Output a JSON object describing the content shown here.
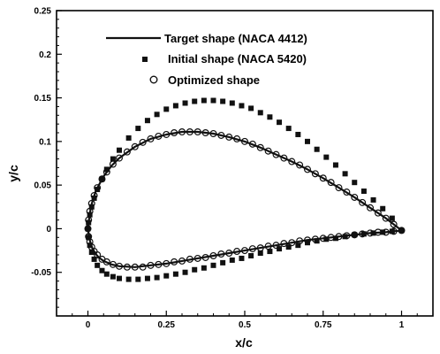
{
  "chart_data": {
    "type": "line",
    "xlabel": "x/c",
    "ylabel": "y/c",
    "xlim": [
      -0.1,
      1.1
    ],
    "ylim": [
      -0.1,
      0.25
    ],
    "x_ticks": [
      0,
      0.25,
      0.5,
      0.75,
      1
    ],
    "x_tick_labels": [
      "0",
      "0.25",
      "0.5",
      "0.75",
      "1"
    ],
    "y_ticks": [
      -0.05,
      0,
      0.05,
      0.1,
      0.15,
      0.2,
      0.25
    ],
    "y_tick_labels": [
      "-0.05",
      "0",
      "0.05",
      "0.1",
      "0.15",
      "0.2",
      "0.25"
    ],
    "grid": false,
    "legend_position": "top-center",
    "series": [
      {
        "name": "Target shape (NACA 4412)",
        "style": "line",
        "x": [
          1.0,
          0.95,
          0.9,
          0.85,
          0.8,
          0.75,
          0.7,
          0.65,
          0.6,
          0.55,
          0.5,
          0.45,
          0.4,
          0.35,
          0.3,
          0.25,
          0.2,
          0.15,
          0.1,
          0.075,
          0.05,
          0.035,
          0.025,
          0.015,
          0.01,
          0.005,
          0.0,
          0.005,
          0.01,
          0.015,
          0.025,
          0.035,
          0.05,
          0.075,
          0.1,
          0.15,
          0.2,
          0.25,
          0.3,
          0.35,
          0.4,
          0.45,
          0.5,
          0.55,
          0.6,
          0.65,
          0.7,
          0.75,
          0.8,
          0.85,
          0.9,
          0.95,
          1.0
        ],
        "y": [
          -0.002,
          0.012,
          0.024,
          0.036,
          0.047,
          0.058,
          0.068,
          0.077,
          0.085,
          0.093,
          0.1,
          0.105,
          0.109,
          0.111,
          0.111,
          0.108,
          0.103,
          0.094,
          0.081,
          0.072,
          0.06,
          0.05,
          0.043,
          0.032,
          0.025,
          0.015,
          0.0,
          -0.012,
          -0.018,
          -0.023,
          -0.029,
          -0.033,
          -0.037,
          -0.041,
          -0.043,
          -0.044,
          -0.042,
          -0.04,
          -0.037,
          -0.034,
          -0.031,
          -0.028,
          -0.025,
          -0.022,
          -0.019,
          -0.016,
          -0.013,
          -0.011,
          -0.009,
          -0.007,
          -0.005,
          -0.004,
          -0.002
        ]
      },
      {
        "name": "Initial shape (NACA 5420)",
        "style": "square-markers",
        "x": [
          1.0,
          0.97,
          0.94,
          0.91,
          0.88,
          0.85,
          0.82,
          0.79,
          0.76,
          0.73,
          0.7,
          0.67,
          0.64,
          0.61,
          0.58,
          0.55,
          0.52,
          0.49,
          0.46,
          0.43,
          0.4,
          0.37,
          0.34,
          0.31,
          0.28,
          0.25,
          0.22,
          0.19,
          0.16,
          0.13,
          0.1,
          0.08,
          0.06,
          0.045,
          0.03,
          0.02,
          0.012,
          0.006,
          0.002,
          0.0,
          0.002,
          0.006,
          0.012,
          0.02,
          0.03,
          0.045,
          0.06,
          0.08,
          0.1,
          0.13,
          0.16,
          0.19,
          0.22,
          0.25,
          0.28,
          0.31,
          0.34,
          0.37,
          0.4,
          0.43,
          0.46,
          0.49,
          0.52,
          0.55,
          0.58,
          0.61,
          0.64,
          0.67,
          0.7,
          0.73,
          0.76,
          0.79,
          0.82,
          0.85,
          0.88,
          0.91,
          0.94,
          0.97
        ],
        "y": [
          -0.002,
          0.012,
          0.023,
          0.033,
          0.043,
          0.053,
          0.063,
          0.073,
          0.082,
          0.091,
          0.1,
          0.108,
          0.115,
          0.122,
          0.128,
          0.133,
          0.138,
          0.141,
          0.144,
          0.146,
          0.147,
          0.147,
          0.146,
          0.144,
          0.141,
          0.137,
          0.131,
          0.124,
          0.115,
          0.104,
          0.09,
          0.08,
          0.068,
          0.057,
          0.045,
          0.035,
          0.025,
          0.016,
          0.007,
          0.0,
          -0.01,
          -0.019,
          -0.027,
          -0.035,
          -0.042,
          -0.048,
          -0.052,
          -0.055,
          -0.057,
          -0.058,
          -0.058,
          -0.057,
          -0.056,
          -0.054,
          -0.052,
          -0.05,
          -0.047,
          -0.045,
          -0.042,
          -0.039,
          -0.036,
          -0.034,
          -0.031,
          -0.028,
          -0.026,
          -0.023,
          -0.021,
          -0.019,
          -0.016,
          -0.014,
          -0.012,
          -0.011,
          -0.009,
          -0.007,
          -0.006,
          -0.005,
          -0.004,
          -0.003
        ]
      },
      {
        "name": "Optimized shape",
        "style": "circle-markers",
        "x": [
          1.0,
          0.975,
          0.95,
          0.925,
          0.9,
          0.875,
          0.85,
          0.825,
          0.8,
          0.775,
          0.75,
          0.725,
          0.7,
          0.675,
          0.65,
          0.625,
          0.6,
          0.575,
          0.55,
          0.525,
          0.5,
          0.475,
          0.45,
          0.425,
          0.4,
          0.375,
          0.35,
          0.325,
          0.3,
          0.275,
          0.25,
          0.225,
          0.2,
          0.175,
          0.15,
          0.125,
          0.1,
          0.08,
          0.06,
          0.045,
          0.03,
          0.02,
          0.012,
          0.006,
          0.002,
          0.0,
          0.002,
          0.006,
          0.012,
          0.02,
          0.03,
          0.045,
          0.06,
          0.08,
          0.1,
          0.125,
          0.15,
          0.175,
          0.2,
          0.225,
          0.25,
          0.275,
          0.3,
          0.325,
          0.35,
          0.375,
          0.4,
          0.425,
          0.45,
          0.475,
          0.5,
          0.525,
          0.55,
          0.575,
          0.6,
          0.625,
          0.65,
          0.675,
          0.7,
          0.725,
          0.75,
          0.775,
          0.8,
          0.825,
          0.85,
          0.875,
          0.9,
          0.925,
          0.95,
          0.975
        ],
        "y": [
          -0.002,
          0.005,
          0.012,
          0.018,
          0.024,
          0.03,
          0.036,
          0.042,
          0.047,
          0.053,
          0.058,
          0.063,
          0.068,
          0.073,
          0.077,
          0.081,
          0.085,
          0.089,
          0.093,
          0.097,
          0.1,
          0.103,
          0.105,
          0.107,
          0.109,
          0.11,
          0.111,
          0.111,
          0.111,
          0.11,
          0.108,
          0.106,
          0.103,
          0.099,
          0.094,
          0.088,
          0.081,
          0.074,
          0.065,
          0.057,
          0.047,
          0.038,
          0.029,
          0.02,
          0.01,
          0.0,
          -0.009,
          -0.015,
          -0.021,
          -0.026,
          -0.03,
          -0.035,
          -0.038,
          -0.041,
          -0.043,
          -0.044,
          -0.044,
          -0.044,
          -0.042,
          -0.041,
          -0.04,
          -0.038,
          -0.037,
          -0.035,
          -0.034,
          -0.033,
          -0.031,
          -0.029,
          -0.028,
          -0.026,
          -0.025,
          -0.023,
          -0.022,
          -0.02,
          -0.019,
          -0.017,
          -0.016,
          -0.014,
          -0.013,
          -0.012,
          -0.011,
          -0.01,
          -0.009,
          -0.008,
          -0.007,
          -0.006,
          -0.005,
          -0.004,
          -0.004,
          -0.003
        ]
      }
    ]
  }
}
